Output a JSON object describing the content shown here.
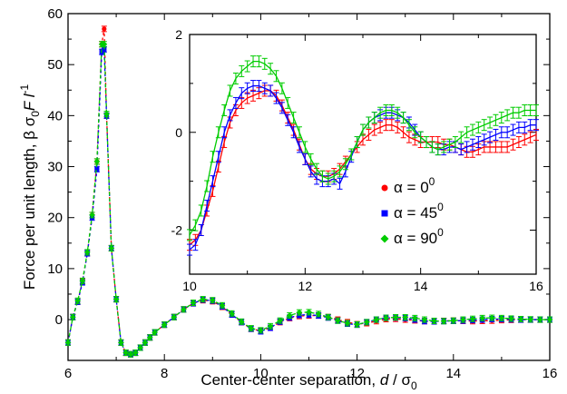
{
  "chart_data": [
    {
      "type": "line",
      "panel": "main",
      "xlabel": "Center-center separation, d / σ0",
      "ylabel": "Force per unit length, β σ0F l-1",
      "xlim": [
        6,
        16
      ],
      "ylim": [
        -8,
        60
      ],
      "xticks": [
        6,
        8,
        10,
        12,
        14,
        16
      ],
      "yticks": [
        0,
        10,
        20,
        30,
        40,
        50,
        60
      ],
      "grid": false,
      "series": [
        {
          "name": "α = 0⁰",
          "color": "#ff0000",
          "x": [
            6.0,
            6.1,
            6.2,
            6.3,
            6.4,
            6.5,
            6.6,
            6.7,
            6.75,
            6.8,
            6.9,
            7.0,
            7.1,
            7.2,
            7.3,
            7.4,
            7.5,
            7.6,
            7.7,
            7.8,
            8.0,
            8.2,
            8.4,
            8.6,
            8.8,
            9.0,
            9.2,
            9.4,
            9.6,
            9.8,
            10.0,
            10.2,
            10.4,
            10.6,
            10.8,
            11.0,
            11.2,
            11.4,
            11.6,
            11.8,
            12.0,
            12.2,
            12.4,
            12.6,
            12.8,
            13.0,
            13.2,
            13.4,
            13.6,
            13.8,
            14.0,
            14.2,
            14.4,
            14.6,
            14.8,
            15.0,
            15.2,
            15.4,
            15.6,
            15.8,
            16.0
          ],
          "values": [
            -4.5,
            0.5,
            3.5,
            7.5,
            13,
            20.5,
            31,
            54,
            57,
            40,
            14,
            4,
            -4.5,
            -6.5,
            -6.8,
            -6.5,
            -5.5,
            -4.5,
            -3.5,
            -2.5,
            -1.0,
            0.5,
            2.0,
            3.2,
            3.8,
            3.6,
            2.5,
            1.0,
            -0.5,
            -1.8,
            -2.2,
            -1.6,
            -0.5,
            0.3,
            0.7,
            0.8,
            0.8,
            0.5,
            0.0,
            -0.5,
            -0.9,
            -0.7,
            -0.3,
            0.1,
            0.15,
            0.0,
            -0.15,
            -0.3,
            -0.35,
            -0.25,
            -0.2,
            -0.25,
            -0.3,
            -0.25,
            -0.2,
            -0.1,
            -0.05,
            0.0,
            0.0,
            0.0,
            0.0
          ]
        },
        {
          "name": "α = 45⁰",
          "color": "#0000ff",
          "x": [
            6.0,
            6.1,
            6.2,
            6.3,
            6.4,
            6.5,
            6.6,
            6.7,
            6.75,
            6.8,
            6.9,
            7.0,
            7.1,
            7.2,
            7.3,
            7.4,
            7.5,
            7.6,
            7.7,
            7.8,
            8.0,
            8.2,
            8.4,
            8.6,
            8.8,
            9.0,
            9.2,
            9.4,
            9.6,
            9.8,
            10.0,
            10.2,
            10.4,
            10.6,
            10.8,
            11.0,
            11.2,
            11.4,
            11.6,
            11.8,
            12.0,
            12.2,
            12.4,
            12.6,
            12.8,
            13.0,
            13.2,
            13.4,
            13.6,
            13.8,
            14.0,
            14.2,
            14.4,
            14.6,
            14.8,
            15.0,
            15.2,
            15.4,
            15.6,
            15.8,
            16.0
          ],
          "values": [
            -4.5,
            0.5,
            3.5,
            7.3,
            13,
            20,
            29.5,
            52.5,
            53,
            40,
            14,
            4,
            -4.5,
            -6.5,
            -6.8,
            -6.5,
            -5.5,
            -4.5,
            -3.5,
            -2.5,
            -1.0,
            0.5,
            2.0,
            3.2,
            3.9,
            3.7,
            2.6,
            1.0,
            -0.5,
            -1.8,
            -2.3,
            -1.6,
            -0.4,
            0.4,
            0.9,
            0.95,
            0.8,
            0.4,
            -0.2,
            -0.8,
            -1.0,
            -0.5,
            0.0,
            0.35,
            0.4,
            0.3,
            0.0,
            -0.3,
            -0.35,
            -0.3,
            -0.25,
            -0.2,
            -0.1,
            0.0,
            0.1,
            0.1,
            0.05,
            0.0,
            0.0,
            0.0,
            0.0
          ]
        },
        {
          "name": "α = 90⁰",
          "color": "#00cc00",
          "x": [
            6.0,
            6.1,
            6.2,
            6.3,
            6.4,
            6.5,
            6.6,
            6.7,
            6.75,
            6.8,
            6.9,
            7.0,
            7.1,
            7.2,
            7.3,
            7.4,
            7.5,
            7.6,
            7.7,
            7.8,
            8.0,
            8.2,
            8.4,
            8.6,
            8.8,
            9.0,
            9.2,
            9.4,
            9.6,
            9.8,
            10.0,
            10.2,
            10.4,
            10.6,
            10.8,
            11.0,
            11.2,
            11.4,
            11.6,
            11.8,
            12.0,
            12.2,
            12.4,
            12.6,
            12.8,
            13.0,
            13.2,
            13.4,
            13.6,
            13.8,
            14.0,
            14.2,
            14.4,
            14.6,
            14.8,
            15.0,
            15.2,
            15.4,
            15.6,
            15.8,
            16.0
          ],
          "values": [
            -4.5,
            0.5,
            3.7,
            7.6,
            13.2,
            20.5,
            31,
            54,
            54,
            40.3,
            14,
            4,
            -4.5,
            -6.5,
            -6.8,
            -6.5,
            -5.5,
            -4.5,
            -3.5,
            -2.5,
            -1.0,
            0.5,
            2.0,
            3.3,
            4.0,
            3.8,
            2.8,
            1.2,
            -0.4,
            -1.7,
            -2.1,
            -1.3,
            -0.2,
            0.8,
            1.4,
            1.45,
            1.1,
            0.5,
            -0.2,
            -0.7,
            -0.95,
            -0.5,
            0.0,
            0.35,
            0.45,
            0.45,
            0.3,
            0.0,
            -0.25,
            -0.3,
            -0.2,
            0.0,
            0.15,
            0.3,
            0.35,
            0.3,
            0.2,
            0.1,
            0.05,
            0.0,
            0.0
          ]
        }
      ]
    },
    {
      "type": "line",
      "panel": "inset",
      "xlabel": "",
      "ylabel": "",
      "xlim": [
        10,
        16
      ],
      "ylim": [
        -2.9,
        2.0
      ],
      "xticks": [
        10,
        12,
        14,
        16
      ],
      "yticks": [
        -2,
        0,
        2
      ],
      "grid": false,
      "legend_position": "lower-right",
      "series": [
        {
          "name": "α = 0⁰",
          "color": "#ff0000",
          "marker": "circle",
          "x": [
            10.0,
            10.1,
            10.2,
            10.3,
            10.4,
            10.5,
            10.6,
            10.7,
            10.8,
            10.9,
            11.0,
            11.1,
            11.2,
            11.3,
            11.4,
            11.5,
            11.6,
            11.7,
            11.8,
            11.9,
            12.0,
            12.1,
            12.2,
            12.3,
            12.4,
            12.5,
            12.6,
            12.7,
            12.8,
            12.9,
            13.0,
            13.1,
            13.2,
            13.3,
            13.4,
            13.5,
            13.6,
            13.7,
            13.8,
            13.9,
            14.0,
            14.1,
            14.2,
            14.3,
            14.4,
            14.5,
            14.6,
            14.7,
            14.8,
            14.9,
            15.0,
            15.1,
            15.2,
            15.3,
            15.4,
            15.5,
            15.6,
            15.7,
            15.8,
            15.9,
            16.0
          ],
          "values": [
            -2.3,
            -2.2,
            -2.0,
            -1.6,
            -1.2,
            -0.7,
            -0.2,
            0.2,
            0.45,
            0.6,
            0.7,
            0.75,
            0.8,
            0.85,
            0.85,
            0.75,
            0.55,
            0.3,
            0.05,
            -0.25,
            -0.55,
            -0.75,
            -0.85,
            -0.9,
            -0.9,
            -0.85,
            -0.75,
            -0.6,
            -0.45,
            -0.3,
            -0.15,
            -0.05,
            0.05,
            0.1,
            0.15,
            0.15,
            0.1,
            0.0,
            -0.1,
            -0.15,
            -0.2,
            -0.2,
            -0.2,
            -0.2,
            -0.25,
            -0.25,
            -0.3,
            -0.35,
            -0.4,
            -0.4,
            -0.35,
            -0.3,
            -0.3,
            -0.3,
            -0.3,
            -0.3,
            -0.25,
            -0.2,
            -0.15,
            -0.1,
            -0.05
          ]
        },
        {
          "name": "α = 45⁰",
          "color": "#0000ff",
          "marker": "square",
          "x": [
            10.0,
            10.1,
            10.2,
            10.3,
            10.4,
            10.5,
            10.6,
            10.7,
            10.8,
            10.9,
            11.0,
            11.1,
            11.2,
            11.3,
            11.4,
            11.5,
            11.6,
            11.7,
            11.8,
            11.9,
            12.0,
            12.1,
            12.2,
            12.3,
            12.4,
            12.5,
            12.6,
            12.7,
            12.8,
            12.9,
            13.0,
            13.1,
            13.2,
            13.3,
            13.4,
            13.5,
            13.6,
            13.7,
            13.8,
            13.9,
            14.0,
            14.1,
            14.2,
            14.3,
            14.4,
            14.5,
            14.6,
            14.7,
            14.8,
            14.9,
            15.0,
            15.1,
            15.2,
            15.3,
            15.4,
            15.5,
            15.6,
            15.7,
            15.8,
            15.9,
            16.0
          ],
          "values": [
            -2.4,
            -2.3,
            -2.0,
            -1.5,
            -1.0,
            -0.5,
            0.0,
            0.35,
            0.6,
            0.8,
            0.9,
            0.95,
            0.95,
            0.9,
            0.85,
            0.7,
            0.5,
            0.25,
            0.0,
            -0.3,
            -0.55,
            -0.8,
            -0.95,
            -1.0,
            -1.0,
            -0.95,
            -1.05,
            -0.8,
            -0.5,
            -0.2,
            0.05,
            0.2,
            0.3,
            0.35,
            0.4,
            0.4,
            0.35,
            0.3,
            0.2,
            0.05,
            -0.1,
            -0.2,
            -0.3,
            -0.35,
            -0.35,
            -0.3,
            -0.3,
            -0.35,
            -0.3,
            -0.25,
            -0.2,
            -0.15,
            -0.1,
            -0.05,
            0.0,
            0.0,
            0.05,
            0.1,
            0.1,
            0.15,
            0.15
          ]
        },
        {
          "name": "α = 90⁰",
          "color": "#00cc00",
          "marker": "diamond",
          "x": [
            10.0,
            10.1,
            10.2,
            10.3,
            10.4,
            10.5,
            10.6,
            10.7,
            10.8,
            10.9,
            11.0,
            11.1,
            11.2,
            11.3,
            11.4,
            11.5,
            11.6,
            11.7,
            11.8,
            11.9,
            12.0,
            12.1,
            12.2,
            12.3,
            12.4,
            12.5,
            12.6,
            12.7,
            12.8,
            12.9,
            13.0,
            13.1,
            13.2,
            13.3,
            13.4,
            13.5,
            13.6,
            13.7,
            13.8,
            13.9,
            14.0,
            14.1,
            14.2,
            14.3,
            14.4,
            14.5,
            14.6,
            14.7,
            14.8,
            14.9,
            15.0,
            15.1,
            15.2,
            15.3,
            15.4,
            15.5,
            15.6,
            15.7,
            15.8,
            15.9,
            16.0
          ],
          "values": [
            -2.1,
            -1.9,
            -1.6,
            -1.1,
            -0.5,
            0.0,
            0.45,
            0.85,
            1.1,
            1.25,
            1.35,
            1.45,
            1.45,
            1.4,
            1.3,
            1.15,
            0.9,
            0.6,
            0.3,
            0.0,
            -0.3,
            -0.55,
            -0.75,
            -0.9,
            -0.95,
            -0.9,
            -0.8,
            -0.65,
            -0.45,
            -0.2,
            0.05,
            0.2,
            0.3,
            0.4,
            0.45,
            0.45,
            0.4,
            0.3,
            0.15,
            0.0,
            -0.1,
            -0.2,
            -0.3,
            -0.35,
            -0.3,
            -0.25,
            -0.2,
            -0.1,
            0.0,
            0.05,
            0.1,
            0.15,
            0.2,
            0.25,
            0.3,
            0.35,
            0.4,
            0.4,
            0.45,
            0.45,
            0.45
          ]
        }
      ]
    }
  ]
}
